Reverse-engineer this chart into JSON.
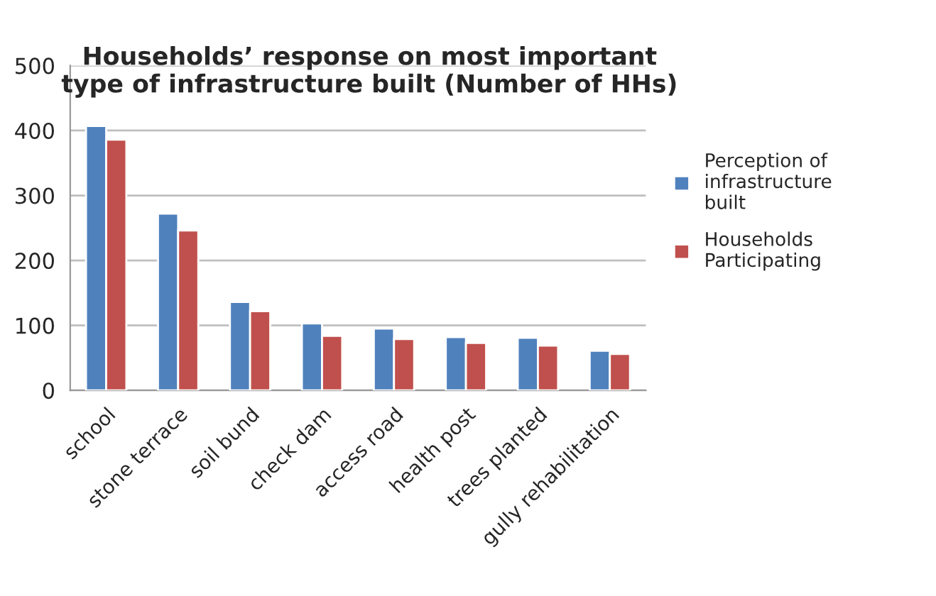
{
  "chart_data": {
    "type": "bar",
    "title": "Households’ response on most important\ntype of infrastructure built (Number of HHs)",
    "categories": [
      "school",
      "stone terrace",
      "soil bund",
      "check dam",
      "access road",
      "health post",
      "trees planted",
      "gully rehabilitation"
    ],
    "series": [
      {
        "name": "Perception of\ninfrastructure\nbuilt",
        "color": "#4f81bd",
        "values": [
          407,
          272,
          136,
          103,
          95,
          82,
          81,
          61
        ]
      },
      {
        "name": "Households\nParticipating",
        "color": "#c0504d",
        "values": [
          386,
          246,
          122,
          84,
          79,
          73,
          69,
          56
        ]
      }
    ],
    "ylim": [
      0,
      500
    ],
    "yticks": [
      0,
      100,
      200,
      300,
      400,
      500
    ],
    "grid": "y",
    "legend": "right"
  }
}
